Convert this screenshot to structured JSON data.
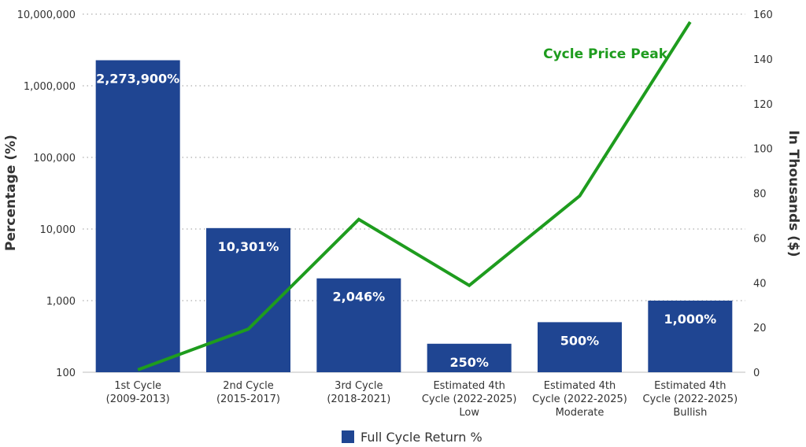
{
  "colors": {
    "bar": "#1f4592",
    "line": "#1e9c1e",
    "grid": "#9a9a9a",
    "text": "#333333"
  },
  "chart_data": {
    "type": "bar",
    "title": "",
    "categories": [
      [
        "1st Cycle",
        "(2009-2013)"
      ],
      [
        "2nd Cycle",
        "(2015-2017)"
      ],
      [
        "3rd Cycle",
        "(2018-2021)"
      ],
      [
        "Estimated 4th",
        "Cycle (2022-2025)",
        "Low"
      ],
      [
        "Estimated 4th",
        "Cycle (2022-2025)",
        "Moderate"
      ],
      [
        "Estimated 4th",
        "Cycle (2022-2025)",
        "Bullish"
      ]
    ],
    "ylabel": "Percentage (%)",
    "y2label": "In Thousands ($)",
    "yscale": "log",
    "ylim": [
      100,
      10000000
    ],
    "yticks": [
      100,
      1000,
      10000,
      100000,
      1000000,
      10000000
    ],
    "ytick_labels": [
      "100",
      "1,000",
      "10,000",
      "100,000",
      "1,000,000",
      "10,000,000"
    ],
    "y2lim": [
      0,
      160
    ],
    "y2ticks": [
      0,
      20,
      40,
      60,
      80,
      100,
      120,
      140,
      160
    ],
    "grid": true,
    "legend_position": "bottom-center",
    "series": [
      {
        "name": "Full Cycle Return %",
        "type": "bar",
        "axis": "left",
        "values": [
          2273900,
          10301,
          2046,
          250,
          500,
          1000
        ],
        "labels": [
          "2,273,900%",
          "10,301%",
          "2,046%",
          "250%",
          "500%",
          "1,000%"
        ]
      },
      {
        "name": "Cycle Price Peak",
        "type": "line",
        "axis": "right",
        "values": [
          1.1,
          19.3,
          68.3,
          38.8,
          78.8,
          156.5
        ]
      }
    ]
  }
}
